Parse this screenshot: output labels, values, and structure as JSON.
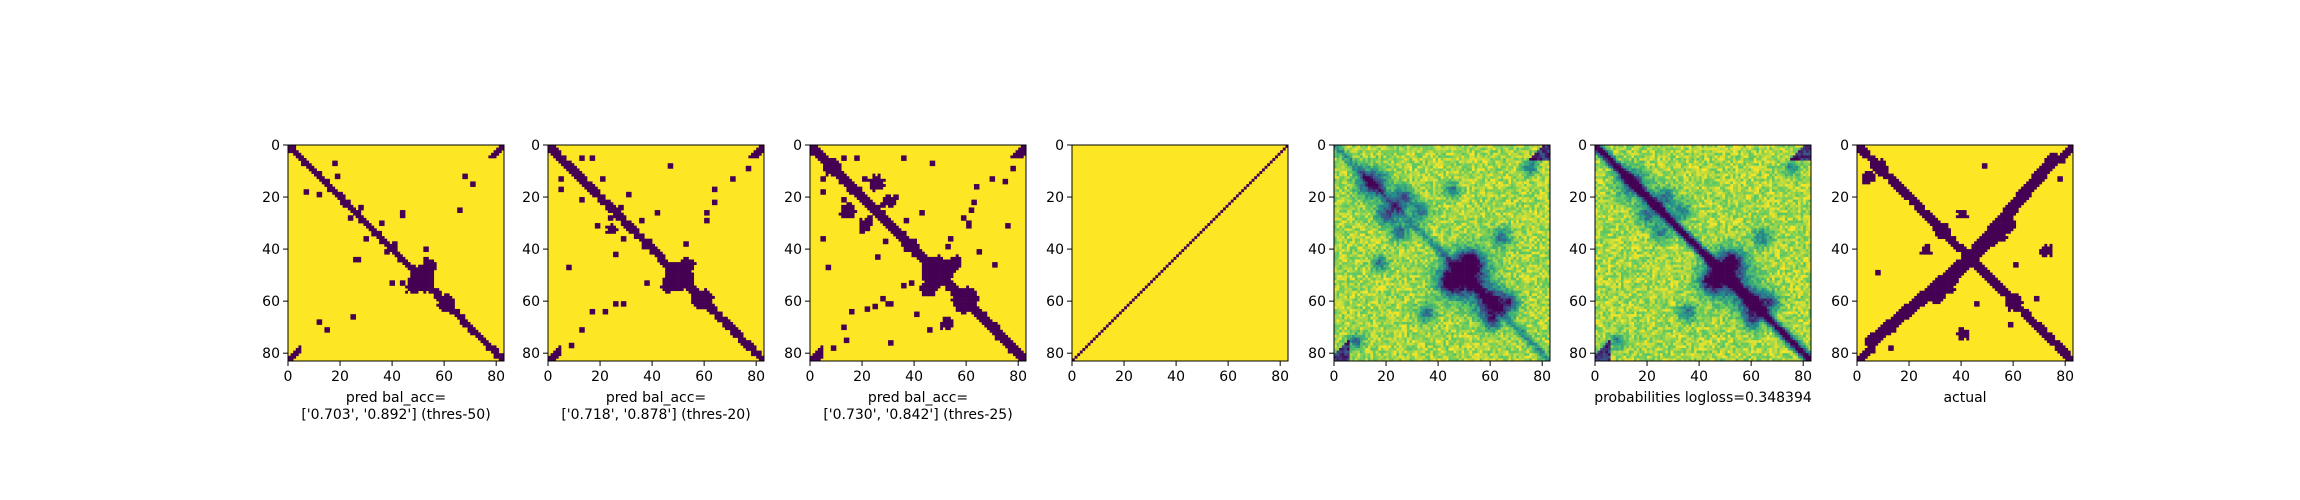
{
  "figure": {
    "background": "#ffffff"
  },
  "chart_data": [
    {
      "type": "heatmap",
      "mode": "binary",
      "xlabel": [
        "pred bal_acc=",
        "['0.703', '0.892'] (thres-50)"
      ],
      "ticks": [
        "0",
        "20",
        "40",
        "60",
        "80"
      ],
      "xlim": [
        0,
        83
      ],
      "ylim": [
        0,
        83
      ],
      "matrix_size": 83,
      "seed": 1,
      "band_width": 1.8,
      "blobs": [
        [
          51,
          51,
          5
        ],
        [
          60,
          60,
          3.2
        ],
        [
          54,
          47,
          2.5
        ],
        [
          46,
          54,
          2.5
        ]
      ],
      "dots": [
        [
          18,
          11
        ],
        [
          27,
          23
        ],
        [
          35,
          29
        ],
        [
          40,
          37
        ],
        [
          25,
          43
        ],
        [
          43,
          26
        ],
        [
          39,
          52
        ],
        [
          52,
          39
        ],
        [
          17,
          6
        ],
        [
          67,
          11
        ],
        [
          70,
          14
        ],
        [
          52,
          43
        ],
        [
          65,
          24
        ]
      ],
      "corner_band": 1,
      "colors": {
        "low": "#440154",
        "high": "#fde725"
      }
    },
    {
      "type": "heatmap",
      "mode": "binary",
      "xlabel": [
        "pred bal_acc=",
        "['0.718', '0.878'] (thres-20)"
      ],
      "ticks": [
        "0",
        "20",
        "40",
        "60",
        "80"
      ],
      "xlim": [
        0,
        83
      ],
      "ylim": [
        0,
        83
      ],
      "matrix_size": 83,
      "seed": 2,
      "band_width": 2.3,
      "blobs": [
        [
          50,
          50,
          5.5
        ],
        [
          59,
          59,
          4
        ],
        [
          53,
          46,
          3
        ],
        [
          46,
          53,
          3
        ],
        [
          32,
          24,
          2
        ]
      ],
      "dots": [
        [
          16,
          4
        ],
        [
          20,
          12
        ],
        [
          27,
          23
        ],
        [
          30,
          18
        ],
        [
          35,
          28
        ],
        [
          38,
          36
        ],
        [
          37,
          52
        ],
        [
          52,
          37
        ],
        [
          60,
          28
        ],
        [
          63,
          21
        ],
        [
          70,
          12
        ],
        [
          76,
          8
        ],
        [
          41,
          25
        ],
        [
          12,
          4
        ],
        [
          16,
          63
        ],
        [
          25,
          60
        ],
        [
          46,
          7
        ]
      ],
      "corner_band": 2,
      "colors": {
        "low": "#440154",
        "high": "#fde725"
      }
    },
    {
      "type": "heatmap",
      "mode": "binary",
      "xlabel": [
        "pred bal_acc=",
        "['0.730', '0.842'] (thres-25)"
      ],
      "ticks": [
        "0",
        "20",
        "40",
        "60",
        "80"
      ],
      "xlim": [
        0,
        83
      ],
      "ylim": [
        0,
        83
      ],
      "matrix_size": 83,
      "seed": 3,
      "band_width": 2.6,
      "blobs": [
        [
          48,
          48,
          6
        ],
        [
          59,
          59,
          5
        ],
        [
          8,
          8,
          3.5
        ],
        [
          14,
          25,
          3
        ],
        [
          25,
          14,
          3
        ],
        [
          30,
          21,
          2.5
        ],
        [
          21,
          30,
          2.5
        ],
        [
          55,
          45,
          3
        ],
        [
          45,
          55,
          3
        ],
        [
          68,
          52,
          2.5
        ]
      ],
      "dots": [
        [
          17,
          4
        ],
        [
          20,
          12
        ],
        [
          27,
          22
        ],
        [
          32,
          19
        ],
        [
          36,
          28
        ],
        [
          39,
          36
        ],
        [
          38,
          52
        ],
        [
          53,
          35
        ],
        [
          58,
          27
        ],
        [
          62,
          21
        ],
        [
          69,
          12
        ],
        [
          77,
          8
        ],
        [
          42,
          25
        ],
        [
          12,
          4
        ],
        [
          15,
          63
        ],
        [
          24,
          61
        ],
        [
          46,
          6
        ],
        [
          29,
          60
        ],
        [
          60,
          30
        ],
        [
          64,
          40
        ],
        [
          70,
          45
        ],
        [
          75,
          30
        ],
        [
          4,
          35
        ],
        [
          13,
          74
        ]
      ],
      "corner_band": 3,
      "colors": {
        "low": "#440154",
        "high": "#fde725"
      }
    },
    {
      "type": "heatmap",
      "mode": "diagonal",
      "xlabel": [],
      "ticks": [
        "0",
        "20",
        "40",
        "60",
        "80"
      ],
      "xlim": [
        0,
        83
      ],
      "ylim": [
        0,
        83
      ],
      "matrix_size": 83,
      "colors": {
        "low": "#440154",
        "high": "#fde725"
      }
    },
    {
      "type": "heatmap",
      "mode": "probability",
      "xlabel": [],
      "ticks": [
        "0",
        "20",
        "40",
        "60",
        "80"
      ],
      "xlim": [
        0,
        83
      ],
      "ylim": [
        0,
        83
      ],
      "matrix_size": 83,
      "seed": 5,
      "diag_strength": 0.35,
      "blobs": [
        [
          50,
          50,
          6,
          0.9
        ],
        [
          60,
          60,
          4,
          0.8
        ],
        [
          14,
          14,
          4,
          0.7
        ],
        [
          20,
          26,
          3,
          0.6
        ],
        [
          26,
          20,
          3,
          0.6
        ],
        [
          52,
          44,
          3,
          0.7
        ],
        [
          44,
          52,
          3,
          0.7
        ],
        [
          67,
          60,
          2.5,
          0.6
        ],
        [
          60,
          67,
          2.5,
          0.6
        ],
        [
          33,
          25,
          2.5,
          0.5
        ],
        [
          25,
          33,
          2.5,
          0.5
        ],
        [
          75,
          8,
          2,
          0.5
        ],
        [
          8,
          75,
          2,
          0.5
        ],
        [
          45,
          17,
          2,
          0.5
        ],
        [
          17,
          45,
          2,
          0.5
        ],
        [
          64,
          35,
          2.5,
          0.5
        ],
        [
          35,
          64,
          2.5,
          0.5
        ]
      ],
      "colors": {
        "scale": [
          "#440154",
          "#3b528b",
          "#21918c",
          "#5ec962",
          "#fde725"
        ]
      }
    },
    {
      "type": "heatmap",
      "mode": "probability",
      "xlabel": [
        "probabilities logloss=0.348394"
      ],
      "ticks": [
        "0",
        "20",
        "40",
        "60",
        "80"
      ],
      "xlim": [
        0,
        83
      ],
      "ylim": [
        0,
        83
      ],
      "matrix_size": 83,
      "seed": 6,
      "diag_strength": 1.0,
      "blobs": [
        [
          50,
          50,
          6,
          0.75
        ],
        [
          60,
          60,
          4,
          0.7
        ],
        [
          14,
          14,
          4,
          0.6
        ],
        [
          20,
          26,
          3,
          0.5
        ],
        [
          26,
          20,
          3,
          0.5
        ],
        [
          52,
          44,
          3,
          0.6
        ],
        [
          44,
          52,
          3,
          0.6
        ],
        [
          67,
          60,
          2.5,
          0.5
        ],
        [
          60,
          67,
          2.5,
          0.5
        ],
        [
          33,
          25,
          2.5,
          0.45
        ],
        [
          25,
          33,
          2.5,
          0.45
        ],
        [
          75,
          8,
          2,
          0.45
        ],
        [
          8,
          75,
          2,
          0.45
        ],
        [
          64,
          35,
          2.5,
          0.45
        ],
        [
          35,
          64,
          2.5,
          0.45
        ]
      ],
      "colors": {
        "scale": [
          "#440154",
          "#3b528b",
          "#21918c",
          "#5ec962",
          "#fde725"
        ]
      }
    },
    {
      "type": "heatmap",
      "mode": "binary",
      "xlabel": [
        "actual"
      ],
      "ticks": [
        "0",
        "20",
        "40",
        "60",
        "80"
      ],
      "xlim": [
        0,
        83
      ],
      "ylim": [
        0,
        83
      ],
      "matrix_size": 83,
      "seed": 7,
      "band_width": 2.4,
      "anti_band": {
        "from": [
          5,
          75
        ],
        "to": [
          58,
          30
        ],
        "width": 2.3
      },
      "blobs": [
        [
          60,
          60,
          3.5
        ],
        [
          32,
          32,
          3
        ],
        [
          8,
          8,
          3
        ],
        [
          12,
          4,
          2.5
        ],
        [
          40,
          26,
          2
        ],
        [
          26,
          40,
          2
        ],
        [
          70,
          12,
          2
        ],
        [
          12,
          70,
          2
        ],
        [
          72,
          40,
          2.5
        ],
        [
          40,
          72,
          2.5
        ],
        [
          55,
          35,
          2
        ],
        [
          35,
          55,
          2
        ]
      ],
      "dots": [
        [
          17,
          63
        ],
        [
          63,
          17
        ],
        [
          24,
          57
        ],
        [
          57,
          24
        ],
        [
          45,
          60
        ],
        [
          60,
          45
        ],
        [
          68,
          58
        ],
        [
          58,
          68
        ],
        [
          78,
          5
        ],
        [
          5,
          78
        ],
        [
          77,
          12
        ],
        [
          12,
          77
        ],
        [
          48,
          7
        ],
        [
          7,
          48
        ]
      ],
      "corner_band": 2,
      "colors": {
        "low": "#440154",
        "high": "#fde725"
      }
    }
  ]
}
